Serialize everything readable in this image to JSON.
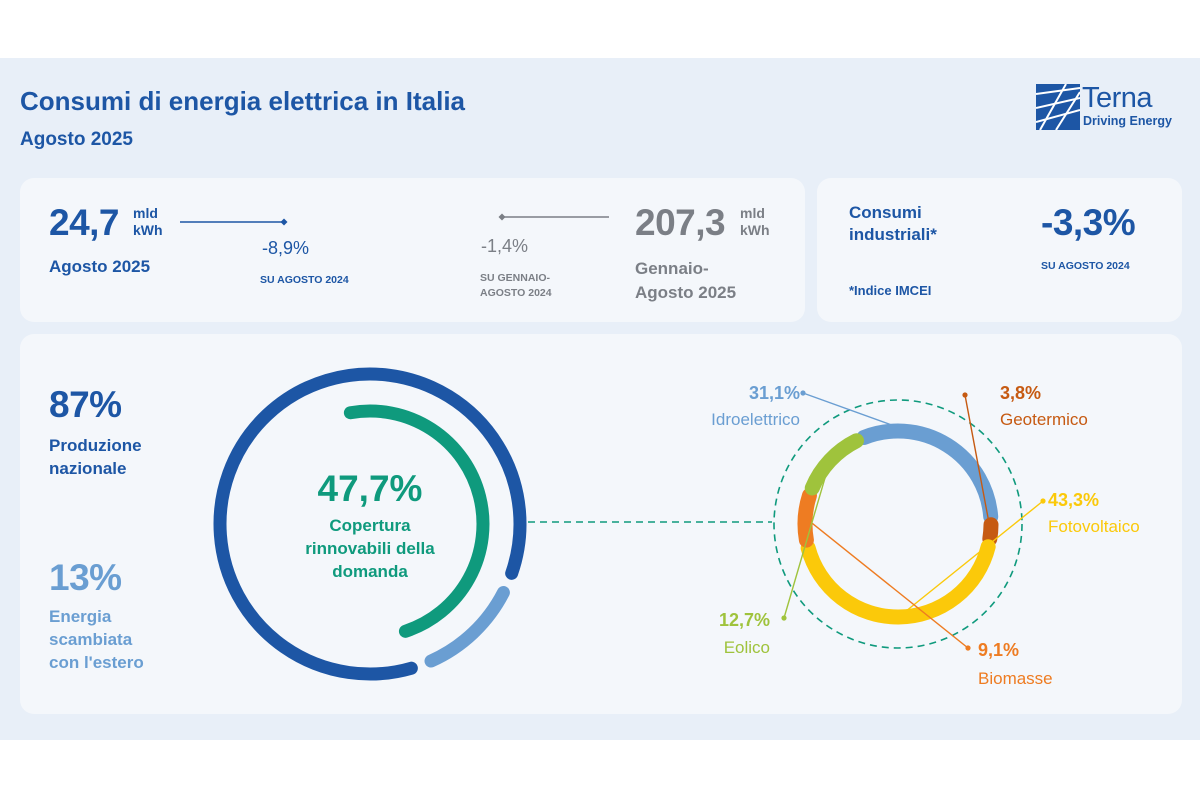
{
  "header": {
    "title": "Consumi di energia elettrica in Italia",
    "subtitle": "Agosto 2025",
    "logo_name": "Terna",
    "logo_tagline": "Driving Energy"
  },
  "kpis": {
    "month": {
      "value": "24,7",
      "unit_line1": "mld",
      "unit_line2": "kWh",
      "label": "Agosto 2025",
      "change": "-8,9%",
      "change_ref": "SU AGOSTO 2024"
    },
    "ytd": {
      "value": "207,3",
      "unit_line1": "mld",
      "unit_line2": "kWh",
      "label_line1": "Gennaio-",
      "label_line2": "Agosto 2025",
      "change": "-1,4%",
      "change_ref_line1": "SU GENNAIO-",
      "change_ref_line2": "AGOSTO 2024"
    },
    "industrial": {
      "label_line1": "Consumi",
      "label_line2": "industriali*",
      "value": "-3,3%",
      "change_ref": "SU AGOSTO 2024",
      "note": "*Indice IMCEI"
    }
  },
  "demand": {
    "production": {
      "value": "87%",
      "label_line1": "Produzione",
      "label_line2": "nazionale"
    },
    "exchange": {
      "value": "13%",
      "label_line1": "Energia",
      "label_line2": "scambiata",
      "label_line3": "con l'estero"
    },
    "renewables": {
      "value": "47,7%",
      "label_line1": "Copertura",
      "label_line2": "rinnovabili della",
      "label_line3": "domanda"
    }
  },
  "chart_data": [
    {
      "type": "pie",
      "categories": [
        "Produzione nazionale",
        "Energia scambiata con l'estero"
      ],
      "values": [
        87,
        13
      ],
      "unit": "%",
      "renewable_coverage": 47.7
    },
    {
      "type": "pie",
      "categories": [
        "Idroelettrico",
        "Geotermico",
        "Fotovoltaico",
        "Biomasse",
        "Eolico"
      ],
      "values": [
        31.1,
        3.8,
        43.3,
        9.1,
        12.7
      ],
      "value_labels": [
        "31,1%",
        "3,8%",
        "43,3%",
        "9,1%",
        "12,7%"
      ],
      "unit": "%",
      "colors": [
        "#6a9ed2",
        "#c65a12",
        "#fbc90a",
        "#ee7c22",
        "#9fc33c"
      ]
    }
  ],
  "colors": {
    "primary_blue": "#1d56a5",
    "light_blue": "#6a9ed2",
    "teal": "#0f9a7d",
    "grey": "#7b7f86",
    "panel_bg": "#e8eff8",
    "card_bg": "#f4f7fb"
  }
}
